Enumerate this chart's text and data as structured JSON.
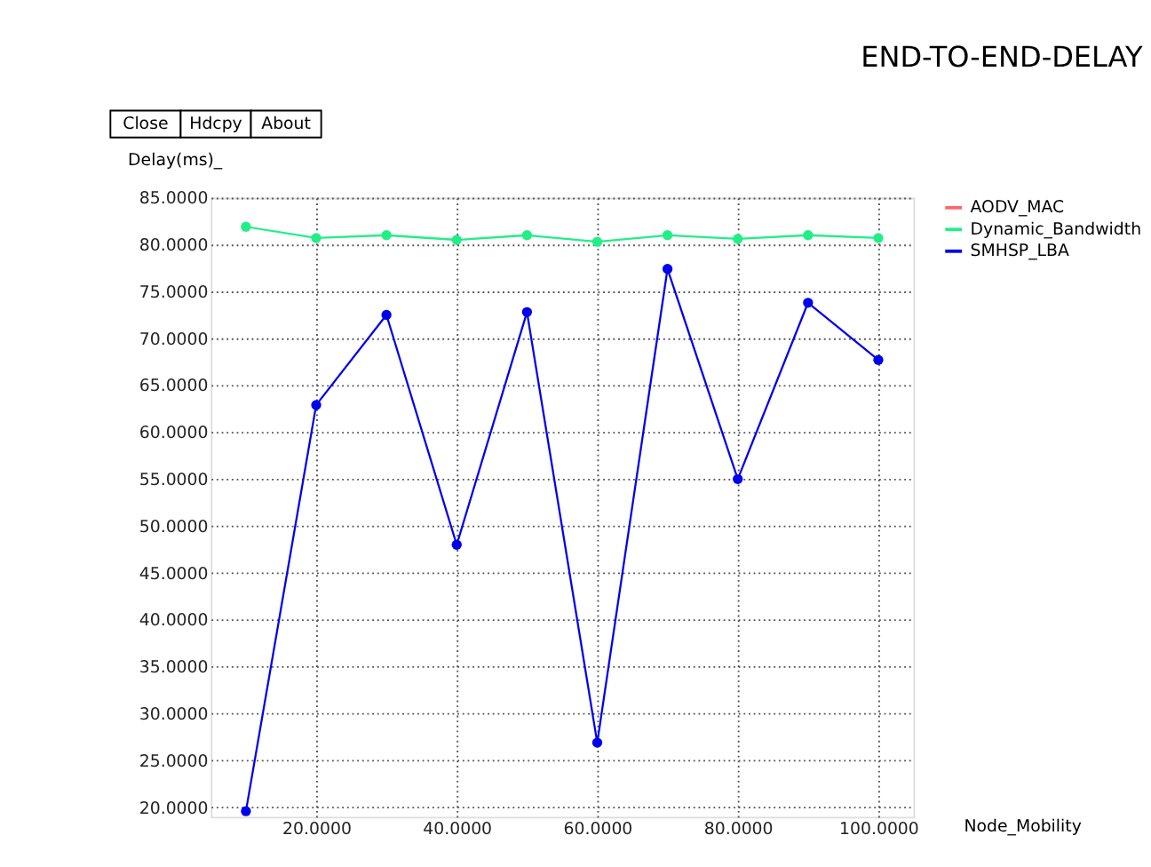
{
  "chart_data": {
    "type": "line",
    "title": "END-TO-END-DELAY",
    "xlabel": "Node_Mobility",
    "ylabel": "Delay(ms)_",
    "annotations": [
      "Close",
      "Hdcpy",
      "About"
    ],
    "x": [
      10,
      20,
      30,
      40,
      50,
      60,
      70,
      80,
      90,
      100
    ],
    "series": [
      {
        "name": "AODV_MAC",
        "color": "#ff6666",
        "values": [
          null,
          null,
          null,
          null,
          null,
          null,
          null,
          null,
          null,
          null
        ]
      },
      {
        "name": "Dynamic_Bandwidth",
        "color": "#22ee88",
        "values": [
          81.9,
          80.7,
          81.0,
          80.5,
          81.0,
          80.3,
          81.0,
          80.6,
          81.0,
          80.7
        ]
      },
      {
        "name": "SMHSP_LBA",
        "color": "#0000ee",
        "values": [
          19.6,
          62.9,
          72.5,
          48.0,
          72.8,
          26.9,
          77.4,
          55.0,
          73.8,
          67.7
        ]
      }
    ],
    "xlim": [
      5,
      105
    ],
    "ylim": [
      19,
      85
    ],
    "xticks": [
      {
        "value": 20,
        "label": "20.0000"
      },
      {
        "value": 40,
        "label": "40.0000"
      },
      {
        "value": 60,
        "label": "60.0000"
      },
      {
        "value": 80,
        "label": "80.0000"
      },
      {
        "value": 100,
        "label": "100.0000"
      }
    ],
    "yticks": [
      {
        "value": 20,
        "label": "20.0000"
      },
      {
        "value": 25,
        "label": "25.0000"
      },
      {
        "value": 30,
        "label": "30.0000"
      },
      {
        "value": 35,
        "label": "35.0000"
      },
      {
        "value": 40,
        "label": "40.0000"
      },
      {
        "value": 45,
        "label": "45.0000"
      },
      {
        "value": 50,
        "label": "50.0000"
      },
      {
        "value": 55,
        "label": "55.0000"
      },
      {
        "value": 60,
        "label": "60.0000"
      },
      {
        "value": 65,
        "label": "65.0000"
      },
      {
        "value": 70,
        "label": "70.0000"
      },
      {
        "value": 75,
        "label": "75.0000"
      },
      {
        "value": 80,
        "label": "80.0000"
      },
      {
        "value": 85,
        "label": "85.0000"
      }
    ],
    "grid": true,
    "legend": "right",
    "marker": "circle",
    "line_style": "solid"
  }
}
